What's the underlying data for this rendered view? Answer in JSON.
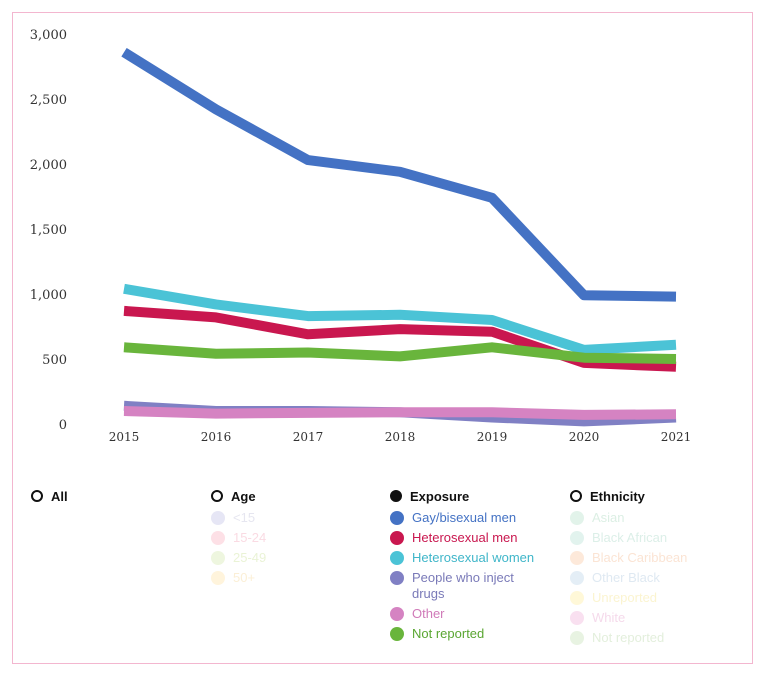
{
  "chart_data": {
    "type": "line",
    "categories": [
      "2015",
      "2016",
      "2017",
      "2018",
      "2019",
      "2020",
      "2021"
    ],
    "y_ticks": [
      "0",
      "500",
      "1,000",
      "1,500",
      "2,000",
      "2,500",
      "3,000"
    ],
    "ylim": [
      0,
      3000
    ],
    "grid": false,
    "series": [
      {
        "name": "Gay/bisexual men",
        "color": "#4472c4",
        "values": [
          2860,
          2420,
          2030,
          1940,
          1740,
          990,
          980
        ]
      },
      {
        "name": "Heterosexual women",
        "color": "#4bc3d6",
        "values": [
          1040,
          920,
          830,
          840,
          800,
          570,
          610
        ]
      },
      {
        "name": "Heterosexual men",
        "color": "#c9174f",
        "values": [
          870,
          820,
          690,
          730,
          710,
          470,
          440
        ]
      },
      {
        "name": "Not reported",
        "color": "#69b53c",
        "values": [
          590,
          540,
          550,
          520,
          590,
          510,
          500
        ]
      },
      {
        "name": "People who inject drugs",
        "color": "#8080c4",
        "values": [
          140,
          100,
          100,
          90,
          50,
          20,
          50
        ]
      },
      {
        "name": "Other",
        "color": "#d583c2",
        "values": [
          100,
          80,
          85,
          90,
          90,
          70,
          75
        ]
      }
    ]
  },
  "legend": {
    "all": {
      "label": "All"
    },
    "age": {
      "label": "Age",
      "items": [
        {
          "label": "<15",
          "color": "#e6e6f5",
          "text_color": "#e6e6f0"
        },
        {
          "label": "15-24",
          "color": "#fde0e6",
          "text_color": "#fadbe3"
        },
        {
          "label": "25-49",
          "color": "#eef6df",
          "text_color": "#eaf3d6"
        },
        {
          "label": "50+",
          "color": "#fff4dc",
          "text_color": "#fbefd6"
        }
      ]
    },
    "exposure": {
      "label": "Exposure",
      "items": [
        {
          "label": "Gay/bisexual men",
          "color": "#4472c4",
          "text_color": "#4472c4"
        },
        {
          "label": "Heterosexual men",
          "color": "#c9174f",
          "text_color": "#c9174f"
        },
        {
          "label": "Heterosexual women",
          "color": "#4bc3d6",
          "text_color": "#3fb6c9"
        },
        {
          "label": "People who inject\ndrugs",
          "color": "#8080c4",
          "text_color": "#7a7ab8"
        },
        {
          "label": "Other",
          "color": "#d583c2",
          "text_color": "#d07ab8"
        },
        {
          "label": "Not reported",
          "color": "#69b53c",
          "text_color": "#5aa632"
        }
      ]
    },
    "ethnicity": {
      "label": "Ethnicity",
      "items": [
        {
          "label": "Asian",
          "color": "#e2f3ea",
          "text_color": "#dcefe4"
        },
        {
          "label": "Black African",
          "color": "#e2f3ee",
          "text_color": "#dcefe8"
        },
        {
          "label": "Black Caribbean",
          "color": "#fde9da",
          "text_color": "#fbe4d4"
        },
        {
          "label": "Other Black",
          "color": "#e4eef6",
          "text_color": "#dfe9f2"
        },
        {
          "label": "Unreported",
          "color": "#fff8d8",
          "text_color": "#fbf4d0"
        },
        {
          "label": "White",
          "color": "#f9e0f0",
          "text_color": "#f5daeb"
        },
        {
          "label": "Not reported",
          "color": "#e8f3e2",
          "text_color": "#e3efdc"
        }
      ]
    }
  }
}
